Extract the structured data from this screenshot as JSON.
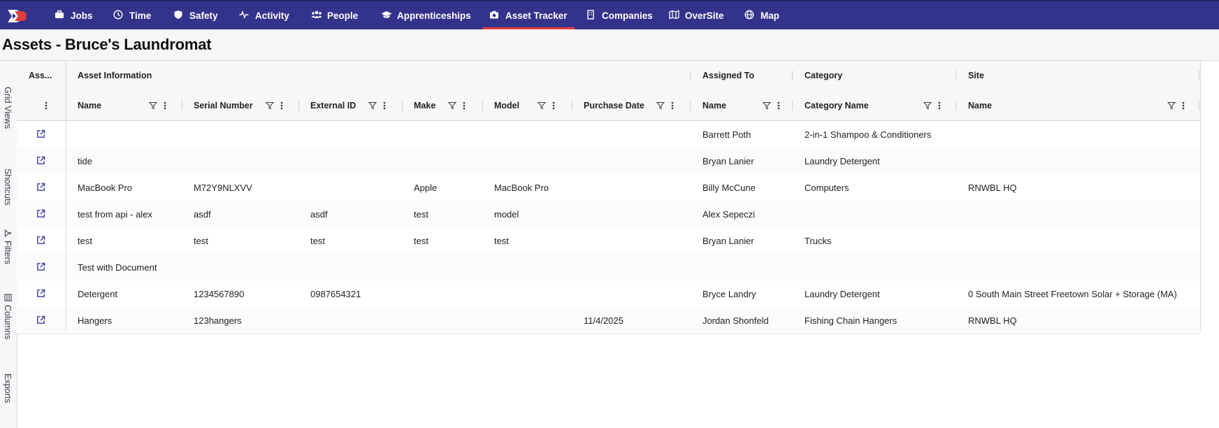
{
  "nav": {
    "items": [
      {
        "label": "Jobs",
        "icon": "briefcase-icon"
      },
      {
        "label": "Time",
        "icon": "clock-icon"
      },
      {
        "label": "Safety",
        "icon": "shield-icon"
      },
      {
        "label": "Activity",
        "icon": "pulse-icon"
      },
      {
        "label": "People",
        "icon": "people-icon"
      },
      {
        "label": "Apprenticeships",
        "icon": "graduation-cap-icon"
      },
      {
        "label": "Asset Tracker",
        "icon": "camera-icon",
        "active": true
      },
      {
        "label": "Companies",
        "icon": "building-icon"
      },
      {
        "label": "OverSite",
        "icon": "map-fold-icon"
      },
      {
        "label": "Map",
        "icon": "globe-icon"
      }
    ],
    "accent": "#34338c",
    "active_indicator": "#e23d3d"
  },
  "page": {
    "title": "Assets - Bruce's Laundromat"
  },
  "sidebar": {
    "tabs": [
      {
        "label": "Grid Views",
        "icon": ""
      },
      {
        "label": "Shortcuts",
        "icon": ""
      },
      {
        "label": "Filters",
        "icon": "filter-icon"
      },
      {
        "label": "Columns",
        "icon": "columns-icon"
      },
      {
        "label": "Exports",
        "icon": ""
      }
    ]
  },
  "grid": {
    "groups": [
      "Ass...",
      "Asset Information",
      "Assigned To",
      "Category",
      "Site"
    ],
    "columns": [
      "Name",
      "Serial Number",
      "External ID",
      "Make",
      "Model",
      "Purchase Date",
      "Name",
      "Category Name",
      "Name"
    ],
    "rows": [
      [
        "",
        "",
        "",
        "",
        "",
        "",
        "Barrett Poth",
        "2-in-1 Shampoo & Conditioners",
        ""
      ],
      [
        "tide",
        "",
        "",
        "",
        "",
        "",
        "Bryan Lanier",
        "Laundry Detergent",
        ""
      ],
      [
        "MacBook Pro",
        "M72Y9NLXVV",
        "",
        "Apple",
        "MacBook Pro",
        "",
        "Billy McCune",
        "Computers",
        "RNWBL HQ"
      ],
      [
        "test from api - alex",
        "asdf",
        "asdf",
        "test",
        "model",
        "",
        "Alex Sepeczi",
        "",
        ""
      ],
      [
        "test",
        "test",
        "test",
        "test",
        "test",
        "",
        "Bryan Lanier",
        "Trucks",
        ""
      ],
      [
        "Test with Document",
        "",
        "",
        "",
        "",
        "",
        "",
        "",
        ""
      ],
      [
        "Detergent",
        "1234567890",
        "0987654321",
        "",
        "",
        "",
        "Bryce Landry",
        "Laundry Detergent",
        "0 South Main Street Freetown Solar + Storage (MA)"
      ],
      [
        "Hangers",
        "123hangers",
        "",
        "",
        "",
        "11/4/2025",
        "Jordan Shonfeld",
        "Fishing Chain Hangers",
        "RNWBL HQ"
      ]
    ]
  }
}
